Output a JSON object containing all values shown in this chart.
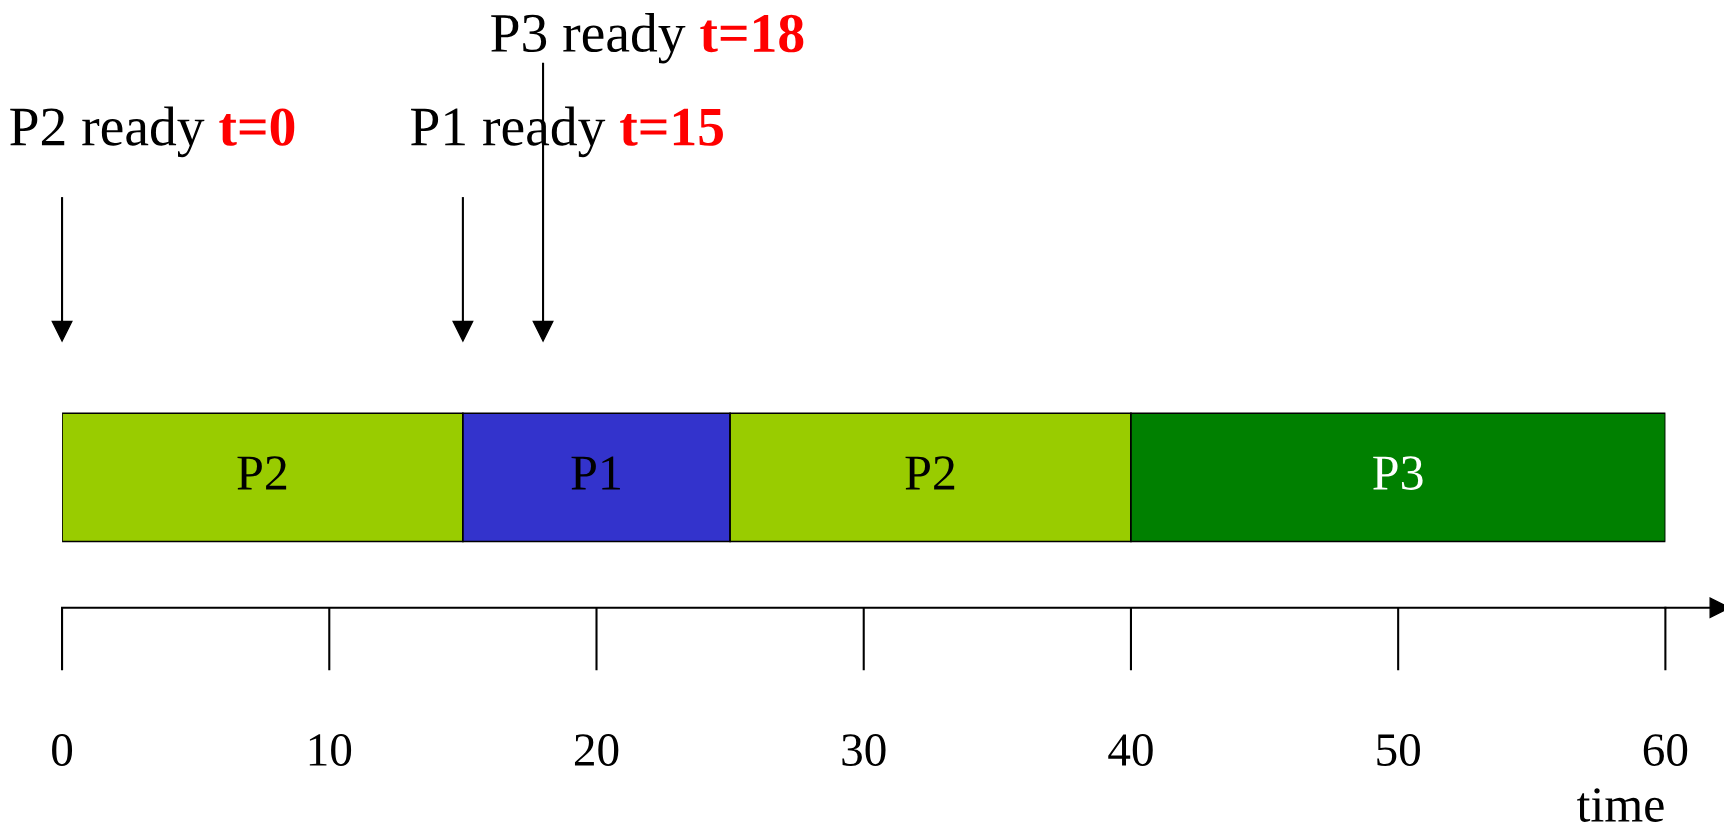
{
  "chart_data": {
    "type": "bar",
    "orientation": "horizontal",
    "stacked": true,
    "categories": [
      null
    ],
    "series": [
      {
        "name": "P2",
        "color": "#99cc00",
        "values": [
          15
        ]
      },
      {
        "name": "P1",
        "color": "#3333cc",
        "values": [
          10
        ]
      },
      {
        "name": "P2",
        "color": "#99cc00",
        "values": [
          15
        ]
      },
      {
        "name": "P3",
        "color": "#008000",
        "values": [
          20
        ]
      }
    ],
    "xlim": [
      0,
      60
    ],
    "xticks": [
      0,
      10,
      20,
      30,
      40,
      50,
      60
    ],
    "xlabel": "time",
    "tick_labels": "x",
    "legend": false,
    "grid": false,
    "ref_lines": [
      {
        "axis": "x",
        "value": 0,
        "label": "P2 ready"
      },
      {
        "axis": "x",
        "value": 15,
        "label": "P1 ready"
      },
      {
        "axis": "x",
        "value": 18,
        "label": "P3 ready"
      }
    ],
    "annotations": [
      "t=0",
      "t=15",
      "t=18"
    ]
  }
}
